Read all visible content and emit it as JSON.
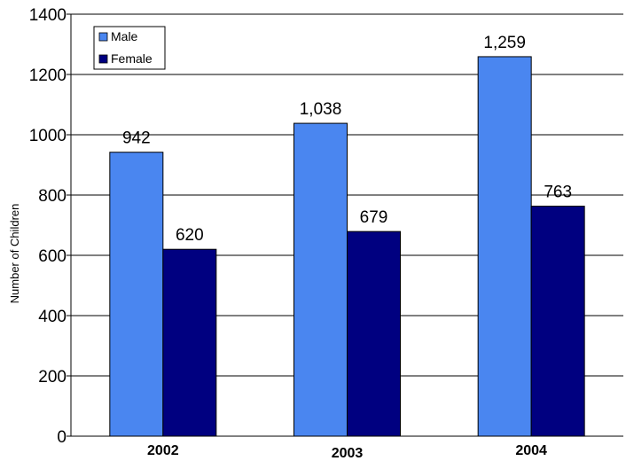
{
  "chart_data": {
    "type": "bar",
    "categories": [
      "2002",
      "2003",
      "2004"
    ],
    "series": [
      {
        "name": "Male",
        "values": [
          942,
          1038,
          1259
        ],
        "labels": [
          "942",
          "1,038",
          "1,259"
        ],
        "color": "#4a86f0"
      },
      {
        "name": "Female",
        "values": [
          620,
          679,
          763
        ],
        "labels": [
          "620",
          "679",
          "763"
        ],
        "color": "#000080"
      }
    ],
    "title": "",
    "xlabel": "",
    "ylabel": "Number of Children",
    "ylim": [
      0,
      1400
    ],
    "yticks": [
      0,
      200,
      400,
      600,
      800,
      1000,
      1200,
      1400
    ],
    "grid": true,
    "legend": "top-left"
  }
}
